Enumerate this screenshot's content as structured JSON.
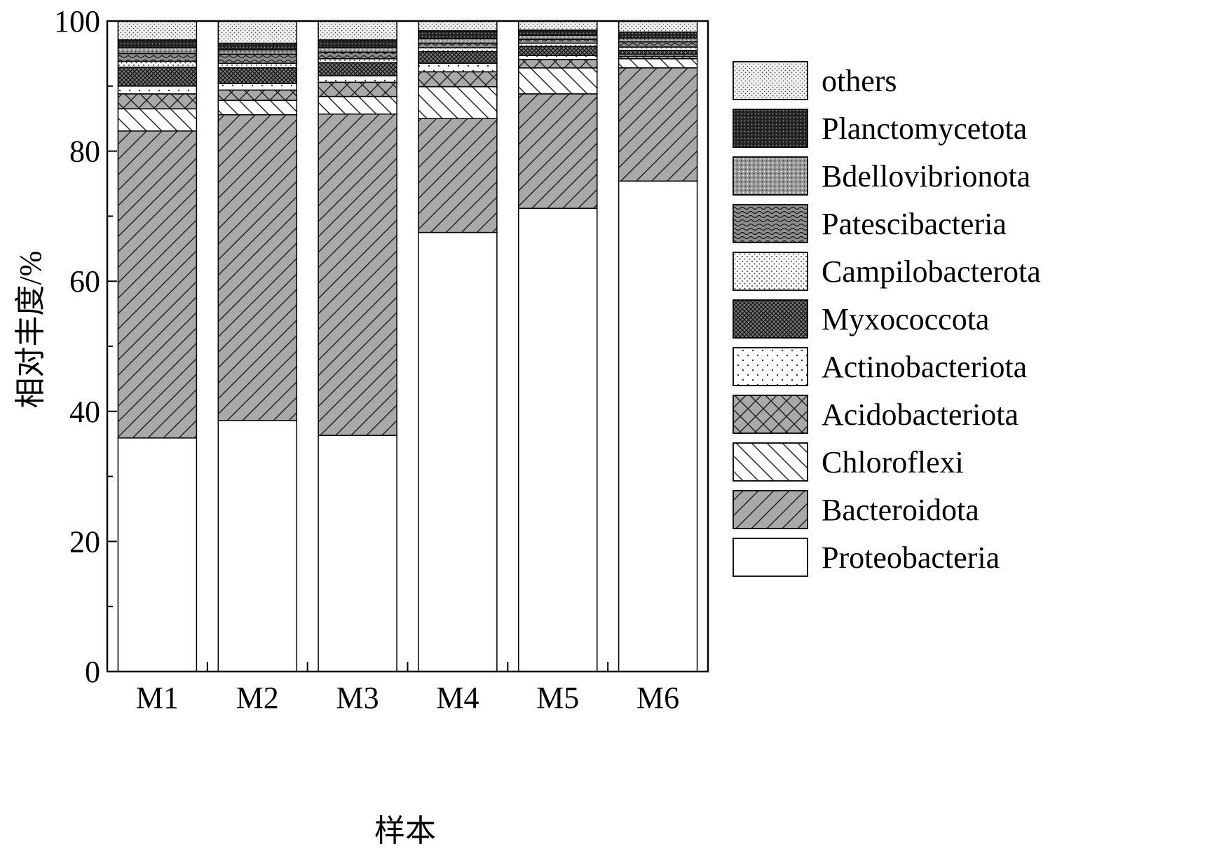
{
  "chart_data": {
    "type": "bar",
    "stacked": true,
    "xlabel": "样本",
    "ylabel": "相对丰度/%",
    "ylim": [
      0,
      100
    ],
    "yticks": [
      0,
      20,
      40,
      60,
      80,
      100
    ],
    "categories": [
      "M1",
      "M2",
      "M3",
      "M4",
      "M5",
      "M6"
    ],
    "legend_position": "right",
    "series": [
      {
        "name": "Proteobacteria",
        "pattern": "plain-white",
        "values": [
          35.9,
          38.6,
          36.3,
          67.5,
          71.2,
          75.4
        ]
      },
      {
        "name": "Bacteroidota",
        "pattern": "diagonal-hatch-gray",
        "values": [
          47.2,
          47.0,
          49.4,
          17.5,
          17.6,
          17.4
        ]
      },
      {
        "name": "Chloroflexi",
        "pattern": "back-diagonal",
        "values": [
          3.4,
          2.2,
          2.7,
          4.9,
          4.0,
          1.4
        ]
      },
      {
        "name": "Acidobacteriota",
        "pattern": "crosshatch-gray",
        "values": [
          2.3,
          1.6,
          2.2,
          2.3,
          1.3,
          0.4
        ]
      },
      {
        "name": "Actinobacteriota",
        "pattern": "sparse-dots",
        "values": [
          1.2,
          1.0,
          1.0,
          1.3,
          0.6,
          0.3
        ]
      },
      {
        "name": "Myxococcota",
        "pattern": "dense-crosshatch",
        "values": [
          2.9,
          2.4,
          2.0,
          1.8,
          1.4,
          0.6
        ]
      },
      {
        "name": "Campilobacterota",
        "pattern": "fine-dots",
        "values": [
          0.9,
          0.7,
          0.6,
          0.6,
          0.5,
          0.5
        ]
      },
      {
        "name": "Patescibacteria",
        "pattern": "wavy",
        "values": [
          1.2,
          1.4,
          1.0,
          0.7,
          0.6,
          0.8
        ]
      },
      {
        "name": "Bdellovibrionota",
        "pattern": "dotted-gray",
        "values": [
          0.9,
          0.7,
          0.7,
          0.7,
          0.6,
          0.6
        ]
      },
      {
        "name": "Planctomycetota",
        "pattern": "dark-dots",
        "values": [
          1.2,
          1.0,
          1.2,
          1.2,
          0.8,
          0.9
        ]
      },
      {
        "name": "others",
        "pattern": "light-stipple",
        "values": [
          2.9,
          3.4,
          2.9,
          1.5,
          1.4,
          1.7
        ]
      }
    ]
  }
}
